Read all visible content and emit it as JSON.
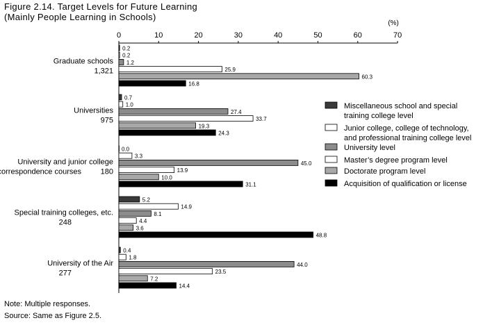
{
  "figure_title": "Figure 2.14. Target Levels for Future Learning",
  "figure_subtitle": "(Mainly People Learning in Schools)",
  "note": "Note: Multiple responses.",
  "source": "Source: Same as Figure 2.5.",
  "chart_data": {
    "type": "bar",
    "orientation": "horizontal",
    "unit_label": "(%)",
    "xlim": [
      0,
      70
    ],
    "ticks": [
      0,
      10,
      20,
      30,
      40,
      50,
      60,
      70
    ],
    "grid": false,
    "legend_position": "right",
    "categories": [
      {
        "name": "Graduate schools",
        "count": "1,321"
      },
      {
        "name": "Universities",
        "count": "975"
      },
      {
        "name": "University and junior college correspondence courses",
        "name_lines": [
          "University and junior college",
          "correspondence courses"
        ],
        "count": "180"
      },
      {
        "name": "Special training colleges, etc.",
        "count": "248"
      },
      {
        "name": "University of the Air",
        "count": "277"
      }
    ],
    "series": [
      {
        "name": "Miscellaneous school and special training college level",
        "legend_lines": [
          "Miscellaneous school and special",
          "training college level"
        ],
        "color": "#3a3a3a",
        "values": [
          0.2,
          0.7,
          0.0,
          5.2,
          0.4
        ],
        "labels": [
          "0.2",
          "0.7",
          "0.0",
          "5.2",
          "0.4"
        ]
      },
      {
        "name": "Junior college, college of technology, and professional training college level",
        "legend_lines": [
          "Junior college, college of technology,",
          "and professional training college level"
        ],
        "color": "#ffffff",
        "values": [
          0.2,
          1.0,
          3.3,
          14.9,
          1.8
        ],
        "labels": [
          "0.2",
          "1.0",
          "3.3",
          "14.9",
          "1.8"
        ]
      },
      {
        "name": "University level",
        "legend_lines": [
          "University level"
        ],
        "color": "#8c8c8c",
        "values": [
          1.2,
          27.4,
          45.0,
          8.1,
          44.0
        ],
        "labels": [
          "1.2",
          "27.4",
          "45.0",
          "8.1",
          "44.0"
        ]
      },
      {
        "name": "Master's degree program level",
        "legend_lines": [
          "Master’s degree program level"
        ],
        "color": "#ffffff",
        "values": [
          25.9,
          33.7,
          13.9,
          4.4,
          23.5
        ],
        "labels": [
          "25.9",
          "33.7",
          "13.9",
          "4.4",
          "23.5"
        ]
      },
      {
        "name": "Doctorate program level",
        "legend_lines": [
          "Doctorate program level"
        ],
        "color": "#a8a8a8",
        "values": [
          60.3,
          19.3,
          10.0,
          3.6,
          7.2
        ],
        "labels": [
          "60.3",
          "19.3",
          "10.0",
          "3.6",
          "7.2"
        ]
      },
      {
        "name": "Acquisition of qualification or license",
        "legend_lines": [
          "Acquisition of qualification or license"
        ],
        "color": "#000000",
        "values": [
          16.8,
          24.3,
          31.1,
          48.8,
          14.4
        ],
        "labels": [
          "16.8",
          "24.3",
          "31.1",
          "48.8",
          "14.4"
        ]
      }
    ]
  }
}
